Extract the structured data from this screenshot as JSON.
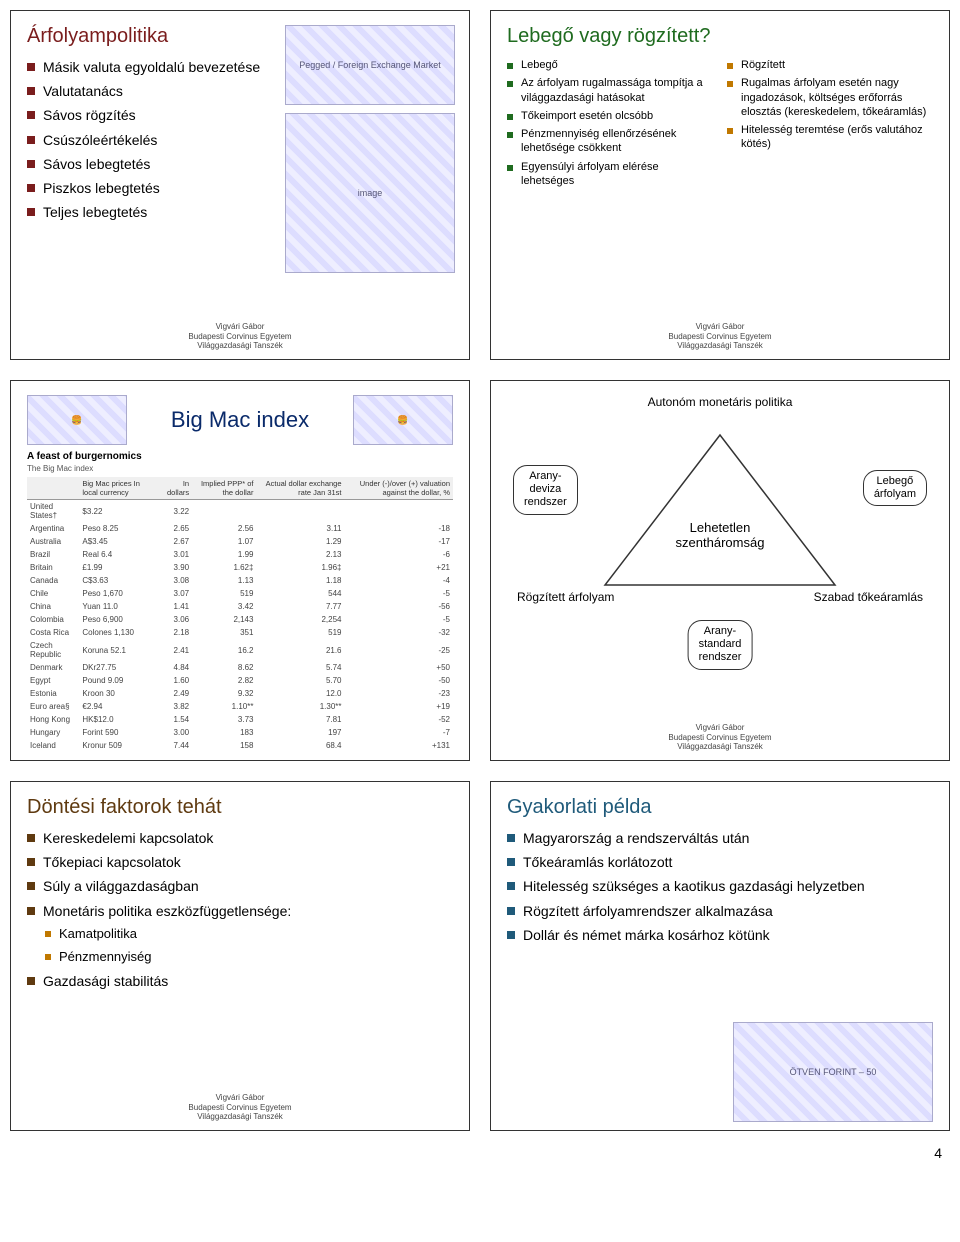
{
  "colors": {
    "slide1_title": "#7a1d1d",
    "slide2_title": "#1f6b1f",
    "slide5_title": "#5f3a10",
    "slide6_title": "#1f5a7a",
    "bullet1": "#7a1d1d",
    "bullet2_fixed": "#c07800",
    "bullet2_float": "#1f6b1f",
    "bullet5": "#5f3a10",
    "bullet5_sub": "#c07800",
    "bullet6": "#1f5a7a"
  },
  "footer": {
    "l1": "Vigvári Gábor",
    "l2": "Budapesti Corvinus Egyetem",
    "l3": "Világgazdasági Tanszék"
  },
  "page_number": "4",
  "slide1": {
    "title": "Árfolyampolitika",
    "items": [
      "Másik valuta egyoldalú bevezetése",
      "Valutatanács",
      "Sávos rögzítés",
      "Csúszóleértékelés",
      "Sávos lebegtetés",
      "Piszkos lebegtetés",
      "Teljes lebegtetés"
    ],
    "img1_label": "Pegged / Foreign Exchange Market",
    "img2_label": "image"
  },
  "slide2": {
    "title": "Lebegő vagy rögzített?",
    "float_head": "Lebegő",
    "float_items": [
      "Az árfolyam rugalmassága tompítja a világgazdasági hatásokat",
      "Tőkeimport esetén olcsóbb",
      "Pénzmennyiség ellenőrzésének lehetősége csökkent",
      "Egyensúlyi árfolyam elérése lehetséges"
    ],
    "fixed_head": "Rögzített",
    "fixed_items": [
      "Rugalmas árfolyam esetén nagy ingadozások, költséges erőforrás elosztás (kereskedelem, tőkeáramlás)",
      "Hitelesség teremtése (erős valutához kötés)"
    ]
  },
  "slide3": {
    "title": "Big Mac index",
    "caption": "A feast of burgernomics",
    "subcaption": "The Big Mac index",
    "head": [
      "",
      "Big Mac prices In local currency",
      "In dollars",
      "Implied PPP* of the dollar",
      "Actual dollar exchange rate Jan 31st",
      "Under (-)/over (+) valuation against the dollar, %"
    ],
    "rows": [
      [
        "United States†",
        "$3.22",
        "3.22",
        "",
        "",
        ""
      ],
      [
        "Argentina",
        "Peso 8.25",
        "2.65",
        "2.56",
        "3.11",
        "-18"
      ],
      [
        "Australia",
        "A$3.45",
        "2.67",
        "1.07",
        "1.29",
        "-17"
      ],
      [
        "Brazil",
        "Real 6.4",
        "3.01",
        "1.99",
        "2.13",
        "-6"
      ],
      [
        "Britain",
        "£1.99",
        "3.90",
        "1.62‡",
        "1.96‡",
        "+21"
      ],
      [
        "Canada",
        "C$3.63",
        "3.08",
        "1.13",
        "1.18",
        "-4"
      ],
      [
        "Chile",
        "Peso 1,670",
        "3.07",
        "519",
        "544",
        "-5"
      ],
      [
        "China",
        "Yuan 11.0",
        "1.41",
        "3.42",
        "7.77",
        "-56"
      ],
      [
        "Colombia",
        "Peso 6,900",
        "3.06",
        "2,143",
        "2,254",
        "-5"
      ],
      [
        "Costa Rica",
        "Colones 1,130",
        "2.18",
        "351",
        "519",
        "-32"
      ],
      [
        "Czech Republic",
        "Koruna 52.1",
        "2.41",
        "16.2",
        "21.6",
        "-25"
      ],
      [
        "Denmark",
        "DKr27.75",
        "4.84",
        "8.62",
        "5.74",
        "+50"
      ],
      [
        "Egypt",
        "Pound 9.09",
        "1.60",
        "2.82",
        "5.70",
        "-50"
      ],
      [
        "Estonia",
        "Kroon 30",
        "2.49",
        "9.32",
        "12.0",
        "-23"
      ],
      [
        "Euro area§",
        "€2.94",
        "3.82",
        "1.10**",
        "1.30**",
        "+19"
      ],
      [
        "Hong Kong",
        "HK$12.0",
        "1.54",
        "3.73",
        "7.81",
        "-52"
      ],
      [
        "Hungary",
        "Forint 590",
        "3.00",
        "183",
        "197",
        "-7"
      ],
      [
        "Iceland",
        "Kronur 509",
        "7.44",
        "158",
        "68.4",
        "+131"
      ]
    ]
  },
  "slide4": {
    "top": "Autonóm monetáris politika",
    "left_bubble": "Arany-\ndeviza\nrendszer",
    "right_bubble": "Lebegő\nárfolyam",
    "center": "Lehetetlen\nszentháromság",
    "bl": "Rögzített árfolyam",
    "br": "Szabad tőkeáramlás",
    "bottom_bubble": "Arany-\nstandard\nrendszer"
  },
  "slide5": {
    "title": "Döntési faktorok tehát",
    "items": [
      "Kereskedelemi kapcsolatok",
      "Tőkepiaci kapcsolatok",
      "Súly a világgazdaságban",
      "Monetáris politika eszközfüggetlensége:"
    ],
    "sub": [
      "Kamatpolitika",
      "Pénzmennyiség"
    ],
    "last": "Gazdasági stabilitás"
  },
  "slide6": {
    "title": "Gyakorlati példa",
    "items": [
      "Magyarország a rendszerváltás után",
      "Tőkeáramlás korlátozott",
      "Hitelesség szükséges a kaotikus gazdasági helyzetben",
      "Rögzített árfolyamrendszer alkalmazása",
      "Dollár és német márka kosárhoz kötünk"
    ],
    "banknote_label": "ÖTVEN FORINT – 50"
  }
}
